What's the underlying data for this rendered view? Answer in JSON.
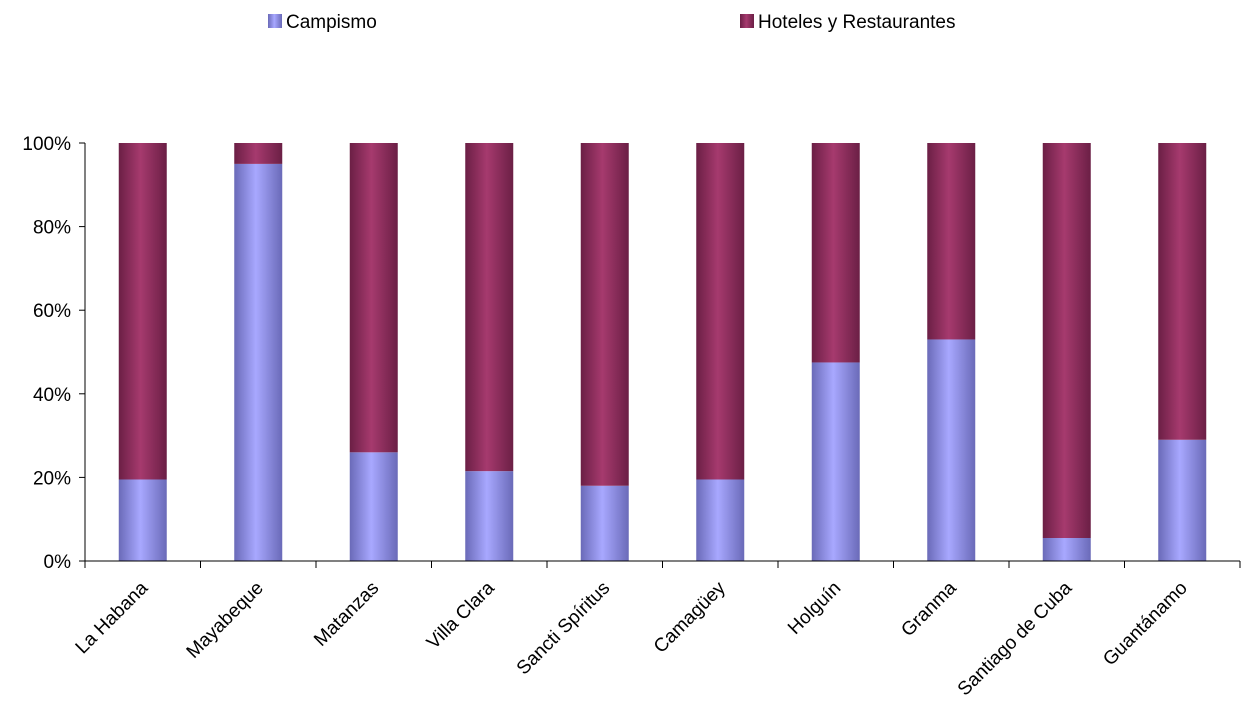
{
  "chart_data": {
    "type": "bar",
    "stacked": true,
    "normalized": true,
    "categories": [
      "La Habana",
      "Mayabeque",
      "Matanzas",
      "Villa Clara",
      "Sancti Spíritus",
      "Camagüey",
      "Holguín",
      "Granma",
      "Santiago de Cuba",
      "Guantánamo"
    ],
    "series": [
      {
        "name": "Campismo",
        "color": "#9999ff",
        "values": [
          19.5,
          95,
          26,
          21.5,
          18,
          19.5,
          47.5,
          53,
          5.5,
          29
        ]
      },
      {
        "name": "Hoteles y Restaurantes",
        "color": "#993366",
        "values": [
          80.5,
          5,
          74,
          78.5,
          82,
          80.5,
          52.5,
          47,
          94.5,
          71
        ]
      }
    ],
    "ylim": [
      0,
      100
    ],
    "yticks": [
      "0%",
      "20%",
      "40%",
      "60%",
      "80%",
      "100%"
    ],
    "legend_position": "top",
    "grid": false
  }
}
